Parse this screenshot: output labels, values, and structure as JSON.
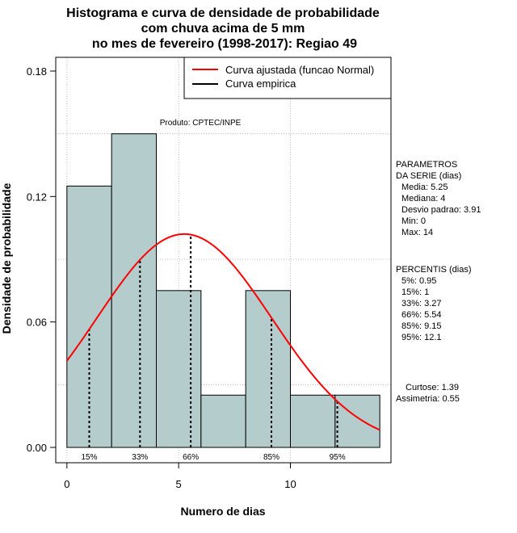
{
  "chart_data": {
    "type": "histogram",
    "title_lines": [
      "Histograma e curva de densidade de probabilidade",
      "com chuva acima de 5 mm",
      "no mes de fevereiro (1998-2017): Regiao 49"
    ],
    "xlabel": "Numero de dias",
    "ylabel": "Densidade de probabilidade",
    "xlim": [
      -0.5,
      14.5
    ],
    "ylim": [
      0,
      0.18
    ],
    "x_ticks": [
      0,
      5,
      10
    ],
    "y_ticks": [
      0.0,
      0.06,
      0.12,
      0.18
    ],
    "y_tick_labels": [
      "0.00",
      "0.06",
      "0.12",
      "0.18"
    ],
    "bins": [
      {
        "x0": 0,
        "x1": 2,
        "density": 0.125
      },
      {
        "x0": 2,
        "x1": 4,
        "density": 0.15
      },
      {
        "x0": 4,
        "x1": 6,
        "density": 0.075
      },
      {
        "x0": 6,
        "x1": 8,
        "density": 0.025
      },
      {
        "x0": 8,
        "x1": 10,
        "density": 0.075
      },
      {
        "x0": 10,
        "x1": 12,
        "density": 0.025
      },
      {
        "x0": 12,
        "x1": 14,
        "density": 0.025
      }
    ],
    "bar_color": "#b5cccc",
    "normal_fit": {
      "mean": 5.25,
      "sd": 3.91,
      "color": "#ff0000",
      "x_range": [
        0,
        14
      ]
    },
    "legend": [
      {
        "label": "Curva ajustada (funcao Normal)",
        "color": "#ff0000"
      },
      {
        "label": "Curva empirica",
        "color": "#000000"
      }
    ],
    "percentile_lines": [
      {
        "label": "15%",
        "x": 1
      },
      {
        "label": "33%",
        "x": 3.27
      },
      {
        "label": "66%",
        "x": 5.54
      },
      {
        "label": "85%",
        "x": 9.15
      },
      {
        "label": "95%",
        "x": 12.1
      }
    ],
    "annotation": "Produto: CPTEC/INPE",
    "side_panel": {
      "params": [
        "PARAMETROS",
        "DA SERIE (dias)",
        "Media: 5.25",
        "Mediana: 4",
        "Desvio padrao: 3.91",
        "Min: 0",
        "Max: 14"
      ],
      "percentis": [
        "PERCENTIS (dias)",
        "5%: 0.95",
        "15%: 1",
        "33%: 3.27",
        "66%: 5.54",
        "85%: 9.15",
        "95%: 12.1"
      ],
      "stats": [
        "Curtose: 1.39",
        "Assimetria: 0.55"
      ]
    }
  }
}
